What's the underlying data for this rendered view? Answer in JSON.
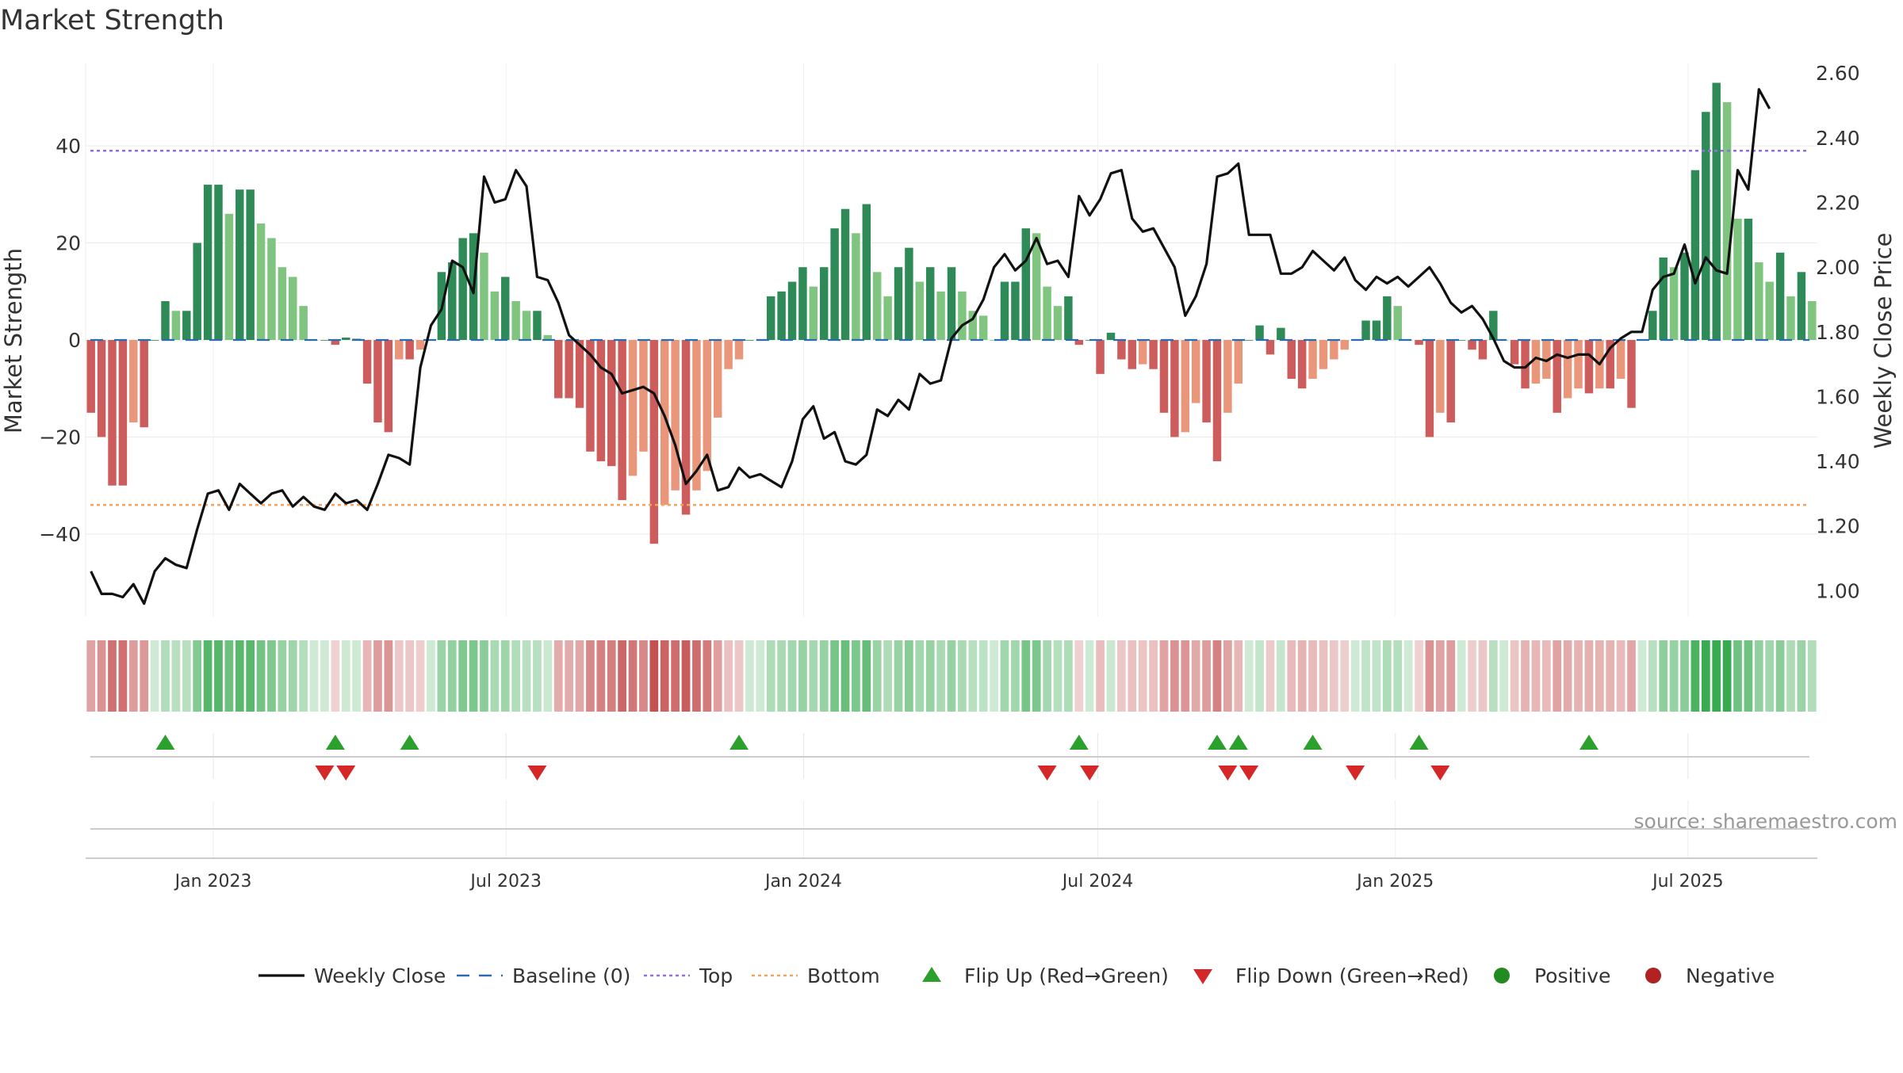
{
  "chart_data": {
    "type": "bar",
    "title": "Market Strength",
    "ylabel": "Market Strength",
    "y2label": "Weekly Close Price",
    "source": "source: sharemaestro.com",
    "ylim": [
      -57,
      57
    ],
    "y2lim": [
      0.92,
      2.63
    ],
    "yticks": [
      -40,
      -20,
      0,
      20,
      40
    ],
    "y2ticks": [
      "1.00",
      "1.20",
      "1.40",
      "1.60",
      "1.80",
      "2.00",
      "2.20",
      "2.40",
      "2.60"
    ],
    "x_start": "2022-10-14",
    "x_end": "2025-09-19",
    "xticks": [
      {
        "date": "2023-01-01",
        "label": "Jan 2023"
      },
      {
        "date": "2023-07-01",
        "label": "Jul 2023"
      },
      {
        "date": "2024-01-01",
        "label": "Jan 2024"
      },
      {
        "date": "2024-07-01",
        "label": "Jul 2024"
      },
      {
        "date": "2025-01-01",
        "label": "Jan 2025"
      },
      {
        "date": "2025-07-01",
        "label": "Jul 2025"
      }
    ],
    "top_line": 39,
    "bottom_line": -34,
    "grid": true,
    "legend_position": "bottom",
    "colors": {
      "green_dark": "#2e8b57",
      "green_light": "#7fc47f",
      "red_dark": "#cd5c5c",
      "red_light": "#e9967a",
      "close": "#111111",
      "baseline": "#2b6cb0",
      "top": "#9370db",
      "bottom": "#f4a460",
      "flip_up": "#2ca02c",
      "flip_down": "#d62728",
      "positive": "#228b22",
      "negative": "#b22222"
    },
    "series": [
      {
        "name": "Market Strength",
        "values": [
          -15,
          -20,
          -30,
          -30,
          -17,
          -18,
          0,
          8,
          6,
          6,
          20,
          32,
          32,
          26,
          31,
          31,
          24,
          21,
          15,
          13,
          7,
          0,
          0,
          -1,
          0.5,
          0.3,
          -9,
          -17,
          -19,
          -4,
          -4,
          -2,
          0,
          14,
          16,
          21,
          22,
          18,
          10,
          13,
          8,
          6,
          6,
          1,
          -12,
          -12,
          -14,
          -23,
          -25,
          -26,
          -33,
          -28,
          -23,
          -42,
          -34,
          -31,
          -36,
          -31,
          -27,
          -16,
          -6,
          -4,
          0,
          0,
          9,
          10,
          12,
          15,
          11,
          15,
          23,
          27,
          22,
          28,
          14,
          9,
          15,
          19,
          12,
          15,
          10,
          15,
          10,
          6,
          5,
          0,
          12,
          12,
          23,
          22,
          11,
          7,
          9,
          -1,
          0,
          -7,
          1.5,
          -4,
          -6,
          -5,
          -6,
          -15,
          -20,
          -19,
          -13,
          -17,
          -25,
          -15,
          -9,
          0,
          3,
          -3,
          2.5,
          -8,
          -10,
          -8,
          -6,
          -4,
          -2,
          0,
          4,
          4,
          9,
          7,
          0,
          -1,
          -20,
          -15,
          -17,
          0,
          -2,
          -4,
          6,
          0,
          -5,
          -10,
          -9,
          -8,
          -15,
          -12,
          -10,
          -11,
          -10,
          -10,
          -8,
          -14,
          0,
          6,
          17,
          15,
          18,
          35,
          47,
          53,
          49,
          25,
          25,
          16,
          12,
          18,
          9,
          14,
          8
        ]
      },
      {
        "name": "Weekly Close",
        "values": [
          1.06,
          0.99,
          0.99,
          0.98,
          1.02,
          0.96,
          1.06,
          1.1,
          1.08,
          1.07,
          1.19,
          1.3,
          1.31,
          1.25,
          1.33,
          1.3,
          1.27,
          1.3,
          1.31,
          1.26,
          1.29,
          1.26,
          1.25,
          1.3,
          1.27,
          1.28,
          1.25,
          1.33,
          1.42,
          1.41,
          1.39,
          1.69,
          1.82,
          1.87,
          2.02,
          2.0,
          1.92,
          2.28,
          2.2,
          2.21,
          2.3,
          2.25,
          1.97,
          1.96,
          1.89,
          1.79,
          1.76,
          1.73,
          1.69,
          1.67,
          1.61,
          1.62,
          1.63,
          1.61,
          1.54,
          1.45,
          1.33,
          1.37,
          1.42,
          1.31,
          1.32,
          1.38,
          1.35,
          1.36,
          1.34,
          1.32,
          1.4,
          1.53,
          1.57,
          1.47,
          1.49,
          1.4,
          1.39,
          1.42,
          1.56,
          1.54,
          1.59,
          1.56,
          1.67,
          1.64,
          1.65,
          1.78,
          1.82,
          1.84,
          1.9,
          2.0,
          2.04,
          1.99,
          2.02,
          2.09,
          2.01,
          2.02,
          1.97,
          2.22,
          2.16,
          2.21,
          2.29,
          2.3,
          2.15,
          2.11,
          2.12,
          2.06,
          2.0,
          1.85,
          1.91,
          2.01,
          2.28,
          2.29,
          2.32,
          2.1,
          2.1,
          2.1,
          1.98,
          1.98,
          2.0,
          2.05,
          2.02,
          1.99,
          2.03,
          1.96,
          1.93,
          1.97,
          1.95,
          1.97,
          1.94,
          1.97,
          2.0,
          1.95,
          1.89,
          1.86,
          1.88,
          1.84,
          1.78,
          1.71,
          1.69,
          1.69,
          1.72,
          1.71,
          1.73,
          1.72,
          1.73,
          1.73,
          1.7,
          1.75,
          1.78,
          1.8,
          1.8,
          1.93,
          1.97,
          1.98,
          2.07,
          1.95,
          2.03,
          1.99,
          1.98,
          2.3,
          2.24,
          2.55,
          2.49
        ]
      }
    ],
    "flip_up_weeks": [
      7,
      23,
      30,
      61,
      93,
      106,
      108,
      115,
      125,
      141
    ],
    "flip_down_weeks": [
      22,
      24,
      42,
      90,
      94,
      107,
      109,
      119,
      127
    ]
  },
  "legend": [
    {
      "label": "Weekly Close",
      "icon": "solid-line"
    },
    {
      "label": "Baseline (0)",
      "icon": "dashed-line"
    },
    {
      "label": "Top",
      "icon": "dotted-line"
    },
    {
      "label": "Bottom",
      "icon": "dotted-line"
    },
    {
      "label": "Flip Up (Red→Green)",
      "icon": "triangle-up"
    },
    {
      "label": "Flip Down (Green→Red)",
      "icon": "triangle-down"
    },
    {
      "label": "Positive",
      "icon": "circle"
    },
    {
      "label": "Negative",
      "icon": "circle"
    }
  ]
}
